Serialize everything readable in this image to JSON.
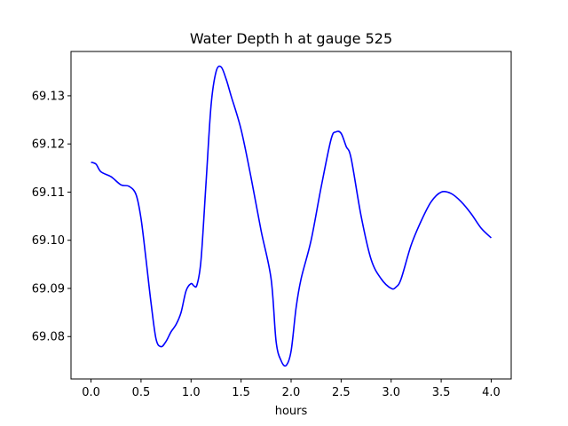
{
  "chart_data": {
    "type": "line",
    "title": "Water Depth h at gauge 525",
    "xlabel": "hours",
    "ylabel": "",
    "xlim": [
      -0.2,
      4.2
    ],
    "ylim": [
      69.0712,
      69.1392
    ],
    "xticks": [
      0.0,
      0.5,
      1.0,
      1.5,
      2.0,
      2.5,
      3.0,
      3.5,
      4.0
    ],
    "xtick_labels": [
      "0.0",
      "0.5",
      "1.0",
      "1.5",
      "2.0",
      "2.5",
      "3.0",
      "3.5",
      "4.0"
    ],
    "yticks": [
      69.08,
      69.09,
      69.1,
      69.11,
      69.12,
      69.13
    ],
    "ytick_labels": [
      "69.08",
      "69.09",
      "69.10",
      "69.11",
      "69.12",
      "69.13"
    ],
    "grid": false,
    "series": [
      {
        "color": "#0000ff",
        "x": [
          0.0,
          0.05,
          0.1,
          0.2,
          0.3,
          0.38,
          0.45,
          0.5,
          0.55,
          0.6,
          0.65,
          0.7,
          0.75,
          0.8,
          0.85,
          0.9,
          0.95,
          1.0,
          1.03,
          1.06,
          1.1,
          1.15,
          1.2,
          1.25,
          1.3,
          1.35,
          1.4,
          1.5,
          1.6,
          1.7,
          1.8,
          1.85,
          1.9,
          1.95,
          2.0,
          2.05,
          2.1,
          2.2,
          2.3,
          2.4,
          2.45,
          2.5,
          2.55,
          2.6,
          2.7,
          2.8,
          2.9,
          3.0,
          3.05,
          3.1,
          3.2,
          3.3,
          3.4,
          3.5,
          3.6,
          3.7,
          3.8,
          3.9,
          4.0
        ],
        "y": [
          69.1162,
          69.1158,
          69.1142,
          69.1132,
          69.1115,
          69.1112,
          69.1095,
          69.1045,
          69.096,
          69.087,
          69.0795,
          69.0779,
          69.079,
          69.081,
          69.0825,
          69.085,
          69.0895,
          69.091,
          69.0905,
          69.0908,
          69.096,
          69.112,
          69.128,
          69.135,
          69.136,
          69.1335,
          69.13,
          69.123,
          69.113,
          69.102,
          69.092,
          69.079,
          69.075,
          69.074,
          69.077,
          69.086,
          69.092,
          69.1,
          69.111,
          69.121,
          69.1225,
          69.1222,
          69.1195,
          69.117,
          69.105,
          69.096,
          69.092,
          69.09,
          69.0903,
          69.092,
          69.099,
          69.104,
          69.108,
          69.11,
          69.1097,
          69.108,
          69.1055,
          69.1025,
          69.1005
        ]
      }
    ]
  }
}
